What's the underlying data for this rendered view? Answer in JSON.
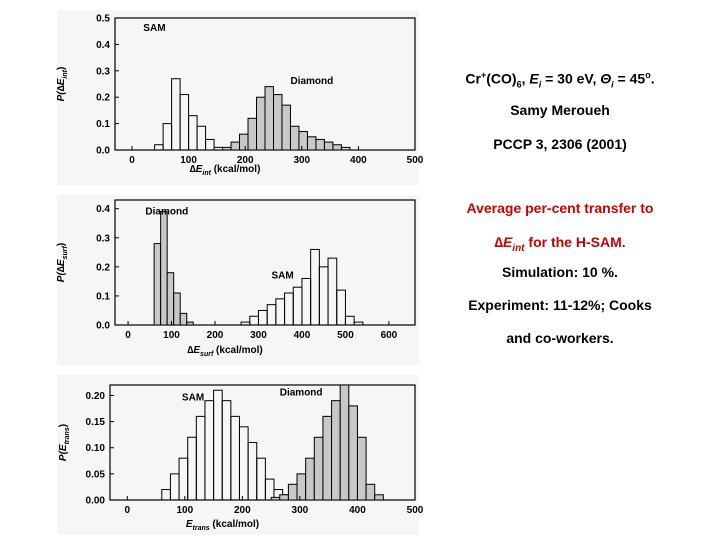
{
  "slide": {
    "citation": {
      "prefix": "Cr",
      "plus": "+",
      "complex": "(CO)",
      "sub6": "6",
      "energy_sym": "E",
      "energy_sub": "i",
      "energy_val": " = 30 eV, ",
      "theta_sym": "Θ",
      "theta_sub": "i",
      "theta_val": " = 45",
      "deg": "o",
      "end": ".",
      "author": "Samy Meroueh",
      "journal": "PCCP 3, 2306 (2001)"
    },
    "summary": {
      "line1": "Average per-cent transfer to",
      "line2_delta": "∆",
      "line2_E": "E",
      "line2_sub": "int",
      "line2_rest": " for the H-SAM.",
      "simulation": "Simulation: 10 %.",
      "experiment_1": "Experiment: 11-12%; Cooks",
      "experiment_2": "and co-workers."
    }
  },
  "chart_data": [
    {
      "type": "histogram",
      "xlabel": "∆E_int (kcal/mol)",
      "ylabel": "P(∆E_int)",
      "xlim": [
        -30,
        500
      ],
      "ylim": [
        0,
        0.5
      ],
      "x_ticks": [
        0,
        100,
        200,
        300,
        400,
        500
      ],
      "y_ticks": [
        0.0,
        0.1,
        0.2,
        0.3,
        0.4,
        0.5
      ],
      "y_tick_labels": [
        "0.0",
        "0.1",
        "0.2",
        "0.3",
        "0.4",
        "0.5"
      ],
      "series": [
        {
          "name": "SAM",
          "fill": "none",
          "bins": [
            [
              40,
              55,
              0.02
            ],
            [
              55,
              70,
              0.1
            ],
            [
              70,
              85,
              0.27
            ],
            [
              85,
              100,
              0.21
            ],
            [
              100,
              115,
              0.13
            ],
            [
              115,
              130,
              0.09
            ],
            [
              130,
              145,
              0.04
            ],
            [
              145,
              160,
              0.01
            ]
          ]
        },
        {
          "name": "Diamond",
          "fill": "#c8c8c8",
          "bins": [
            [
              160,
              175,
              0.01
            ],
            [
              175,
              190,
              0.03
            ],
            [
              190,
              205,
              0.06
            ],
            [
              205,
              220,
              0.12
            ],
            [
              220,
              235,
              0.2
            ],
            [
              235,
              250,
              0.24
            ],
            [
              250,
              265,
              0.21
            ],
            [
              265,
              280,
              0.17
            ],
            [
              280,
              295,
              0.09
            ],
            [
              295,
              310,
              0.07
            ],
            [
              310,
              325,
              0.05
            ],
            [
              325,
              340,
              0.04
            ],
            [
              340,
              355,
              0.03
            ],
            [
              355,
              370,
              0.02
            ],
            [
              370,
              385,
              0.01
            ]
          ]
        }
      ],
      "annotations": [
        {
          "text": "SAM",
          "x": 20,
          "y": 0.45
        },
        {
          "text": "Diamond",
          "x": 280,
          "y": 0.25
        }
      ]
    },
    {
      "type": "histogram",
      "xlabel": "∆E_surf (kcal/mol)",
      "ylabel": "P(∆E_surf)",
      "xlim": [
        -30,
        660
      ],
      "ylim": [
        0,
        0.43
      ],
      "x_ticks": [
        0,
        100,
        200,
        300,
        400,
        500,
        600
      ],
      "y_ticks": [
        0.0,
        0.1,
        0.2,
        0.3,
        0.4
      ],
      "y_tick_labels": [
        "0.0",
        "0.1",
        "0.2",
        "0.3",
        "0.4"
      ],
      "series": [
        {
          "name": "Diamond",
          "fill": "#c8c8c8",
          "bins": [
            [
              60,
              75,
              0.28
            ],
            [
              75,
              90,
              0.39
            ],
            [
              90,
              105,
              0.18
            ],
            [
              105,
              120,
              0.11
            ],
            [
              120,
              135,
              0.04
            ],
            [
              135,
              150,
              0.01
            ]
          ]
        },
        {
          "name": "SAM",
          "fill": "none",
          "bins": [
            [
              260,
              280,
              0.01
            ],
            [
              280,
              300,
              0.03
            ],
            [
              300,
              320,
              0.05
            ],
            [
              320,
              340,
              0.07
            ],
            [
              340,
              360,
              0.09
            ],
            [
              360,
              380,
              0.11
            ],
            [
              380,
              400,
              0.13
            ],
            [
              400,
              420,
              0.16
            ],
            [
              420,
              440,
              0.26
            ],
            [
              440,
              460,
              0.2
            ],
            [
              460,
              480,
              0.23
            ],
            [
              480,
              500,
              0.12
            ],
            [
              500,
              520,
              0.03
            ],
            [
              520,
              540,
              0.01
            ]
          ]
        }
      ],
      "annotations": [
        {
          "text": "Diamond",
          "x": 40,
          "y": 0.38
        },
        {
          "text": "SAM",
          "x": 330,
          "y": 0.16
        }
      ]
    },
    {
      "type": "histogram",
      "xlabel": "E_trans (kcal/mol)",
      "ylabel": "P(E_trans)",
      "xlim": [
        -30,
        500
      ],
      "ylim": [
        0,
        0.22
      ],
      "x_ticks": [
        0,
        100,
        200,
        300,
        400,
        500
      ],
      "y_ticks": [
        0.0,
        0.05,
        0.1,
        0.15,
        0.2
      ],
      "y_tick_labels": [
        "0.00",
        "0.05",
        "0.10",
        "0.15",
        "0.20"
      ],
      "series": [
        {
          "name": "SAM",
          "fill": "none",
          "bins": [
            [
              60,
              75,
              0.02
            ],
            [
              75,
              90,
              0.05
            ],
            [
              90,
              105,
              0.08
            ],
            [
              105,
              120,
              0.12
            ],
            [
              120,
              135,
              0.16
            ],
            [
              135,
              150,
              0.19
            ],
            [
              150,
              165,
              0.21
            ],
            [
              165,
              180,
              0.19
            ],
            [
              180,
              195,
              0.16
            ],
            [
              195,
              210,
              0.14
            ],
            [
              210,
              225,
              0.11
            ],
            [
              225,
              240,
              0.08
            ],
            [
              240,
              255,
              0.04
            ],
            [
              255,
              270,
              0.02
            ],
            [
              270,
              285,
              0.01
            ]
          ]
        },
        {
          "name": "Diamond",
          "fill": "#c8c8c8",
          "bins": [
            [
              250,
              265,
              0.005
            ],
            [
              265,
              280,
              0.01
            ],
            [
              280,
              295,
              0.03
            ],
            [
              295,
              310,
              0.05
            ],
            [
              310,
              325,
              0.08
            ],
            [
              325,
              340,
              0.12
            ],
            [
              340,
              355,
              0.16
            ],
            [
              355,
              370,
              0.19
            ],
            [
              370,
              385,
              0.22
            ],
            [
              385,
              400,
              0.18
            ],
            [
              400,
              415,
              0.12
            ],
            [
              415,
              430,
              0.03
            ],
            [
              430,
              445,
              0.01
            ]
          ]
        }
      ],
      "annotations": [
        {
          "text": "SAM",
          "x": 95,
          "y": 0.19
        },
        {
          "text": "Diamond",
          "x": 265,
          "y": 0.2
        }
      ]
    }
  ]
}
